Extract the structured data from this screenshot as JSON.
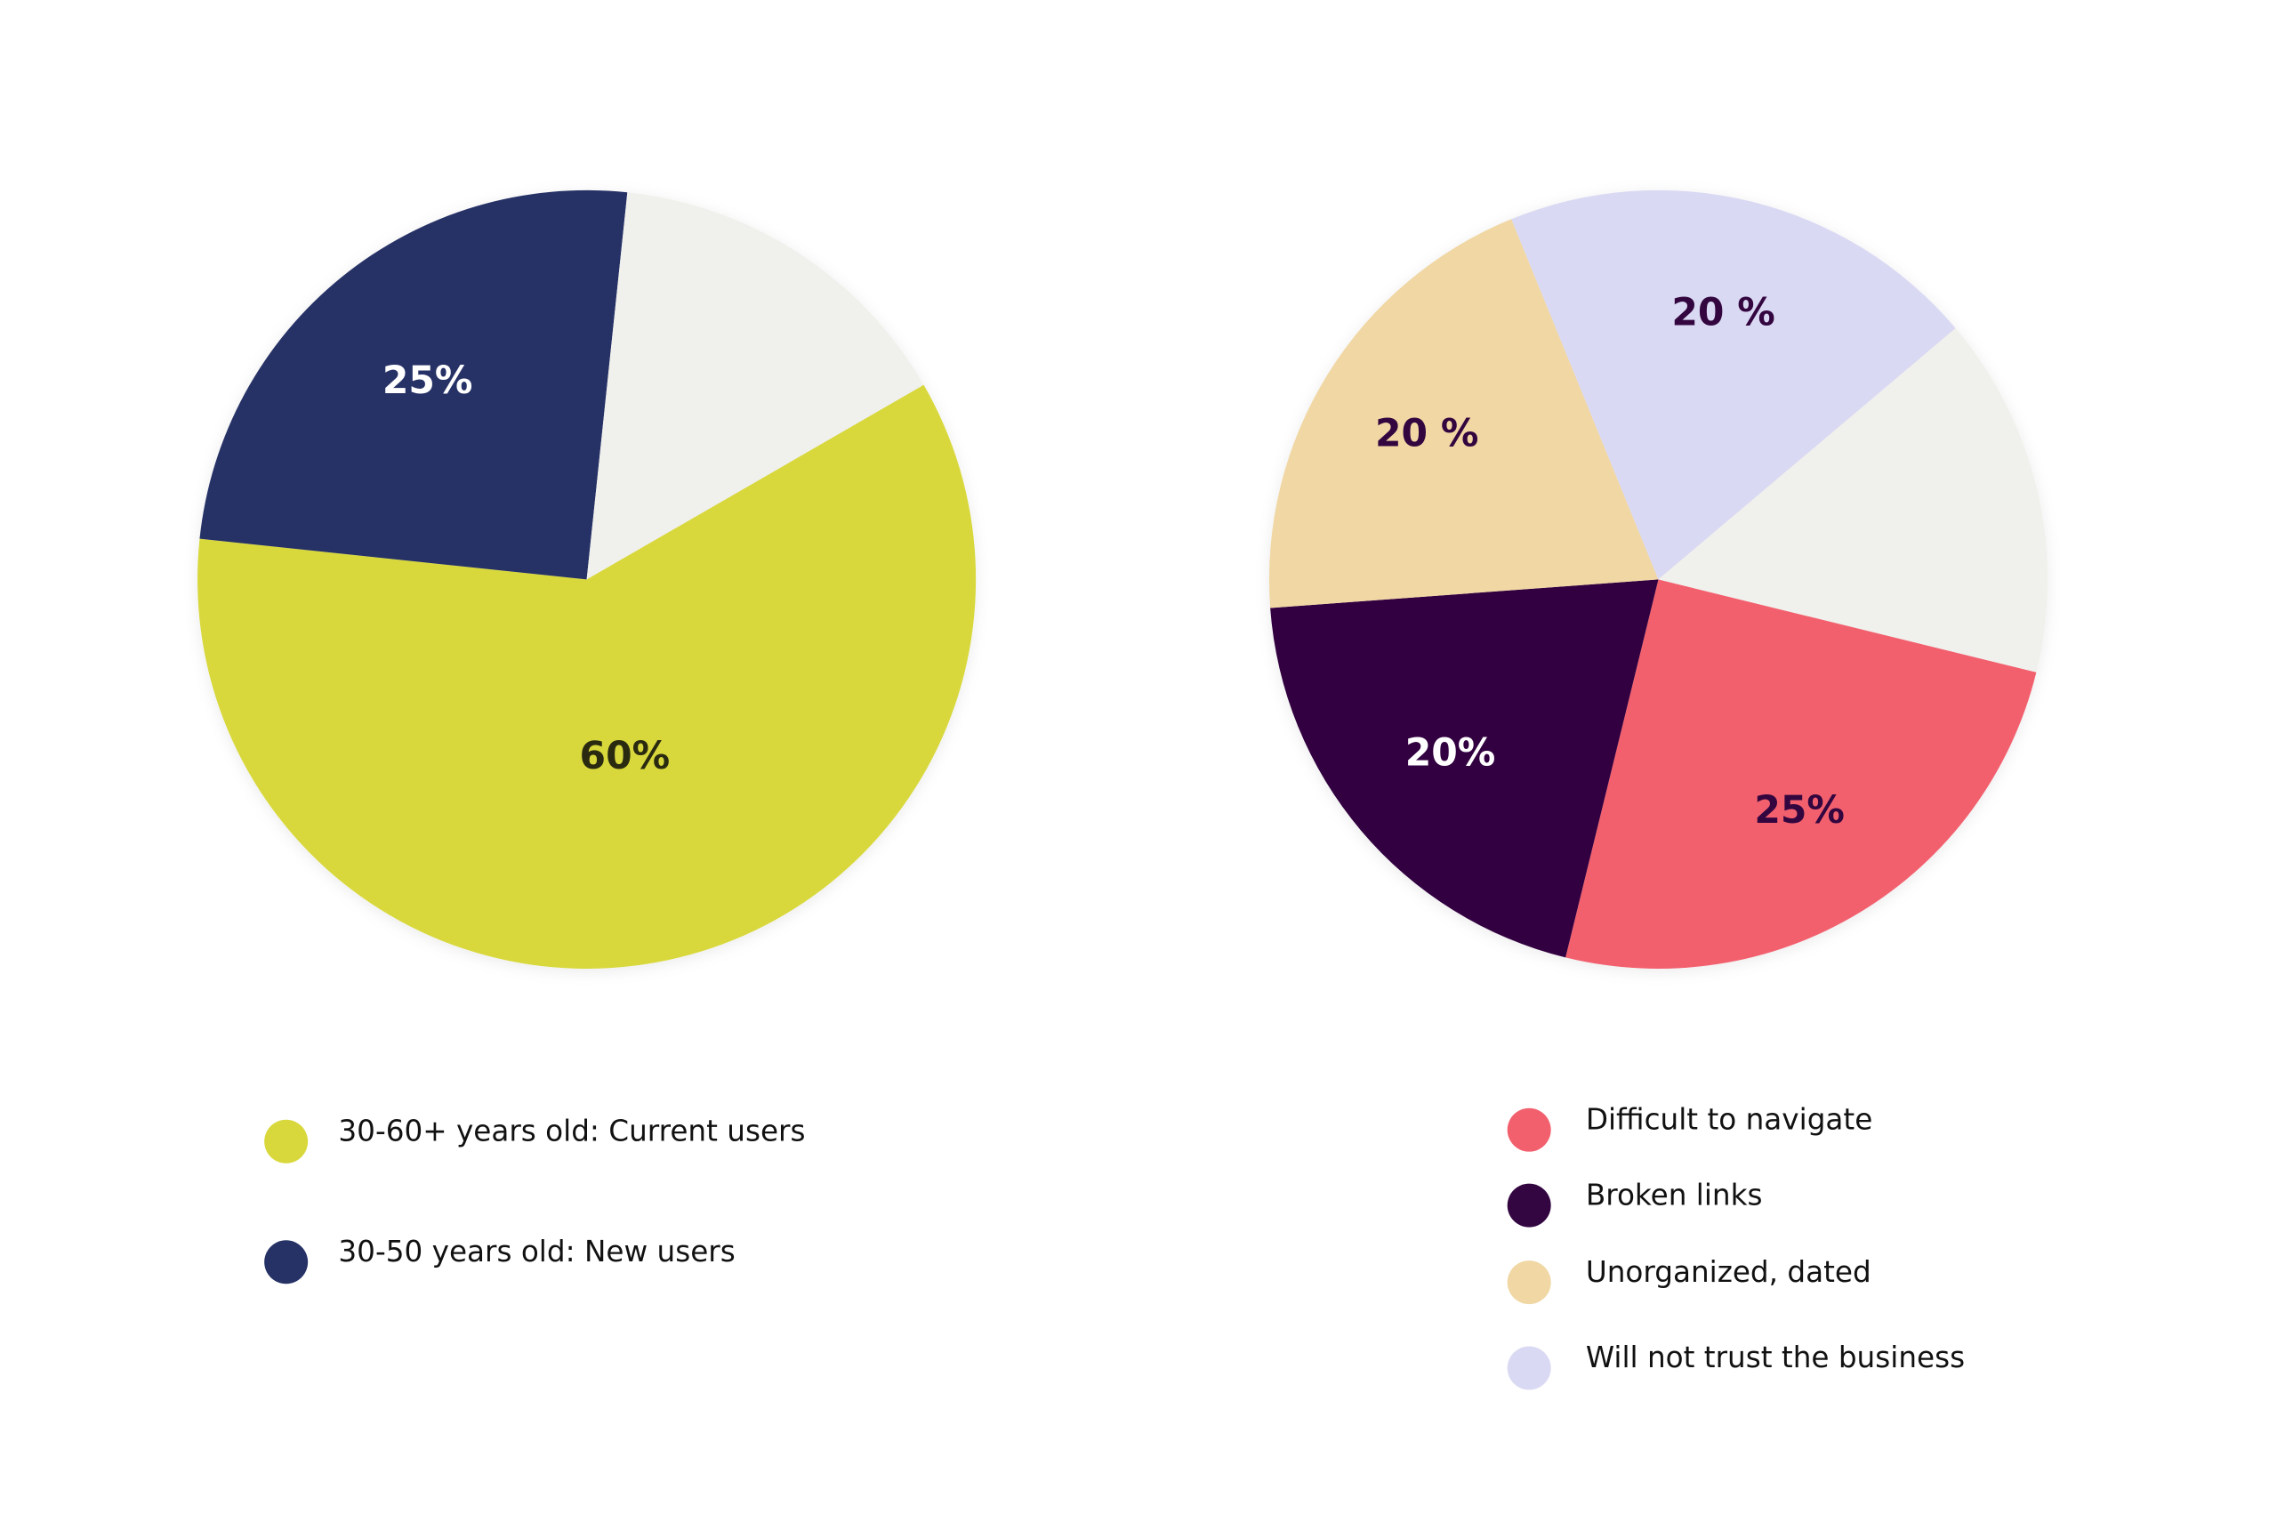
{
  "chart_data": [
    {
      "type": "pie",
      "categories": [
        "30-60+ years old: Current users",
        "30-50 years old: New users",
        null
      ],
      "values": [
        60,
        25,
        15
      ],
      "value_labels": [
        "60%",
        "25%",
        null
      ],
      "colors": [
        "#d8d83c",
        "#263266",
        "#f0f0ec"
      ]
    },
    {
      "type": "pie",
      "categories": [
        "Difficult to navigate",
        "Broken links",
        "Unorganized, dated",
        "Will not trust the business",
        null
      ],
      "values": [
        25,
        20,
        20,
        20,
        15
      ],
      "value_labels": [
        "25%",
        "20%",
        "20 %",
        "20 %",
        null
      ],
      "colors": [
        "#f2606e",
        "#330641",
        "#f0d7a4",
        "#dad9f3",
        "#f0f0ec"
      ]
    }
  ]
}
